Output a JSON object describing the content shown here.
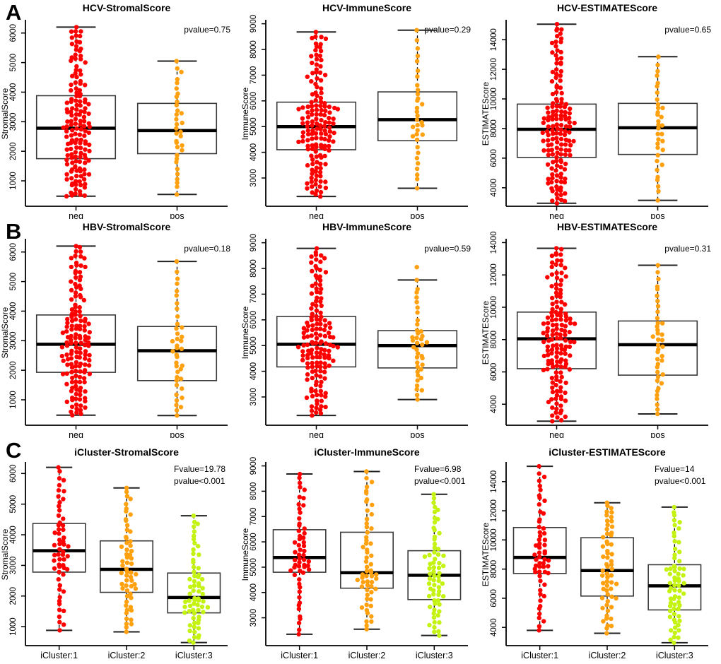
{
  "figure": {
    "letters": [
      "A",
      "B",
      "C"
    ],
    "background": "#ffffff",
    "axis_color": "#000000",
    "box_fill": "#ffffff",
    "box_stroke": "#3a3a3a"
  },
  "chart_data": [
    {
      "id": "hcv-stromalscore",
      "type": "boxplot",
      "title": "HCV-StromalScore",
      "annotation": [
        "pvalue=0.75"
      ],
      "ylabel": "StromalScore",
      "yticks": [
        1000,
        2000,
        3000,
        4000,
        5000,
        6000
      ],
      "ylim": [
        140,
        6400
      ],
      "categories": [
        "neg",
        "pos"
      ],
      "legend_position": "none",
      "grid": false,
      "groups": [
        {
          "label": "neg",
          "color": "#FF0000",
          "n": 150,
          "box": {
            "min": 480,
            "q1": 1750,
            "median": 2780,
            "q3": 3880,
            "max": 6200
          }
        },
        {
          "label": "pos",
          "color": "#FFA00E",
          "n": 34,
          "box": {
            "min": 540,
            "q1": 1920,
            "median": 2700,
            "q3": 3620,
            "max": 5050
          }
        }
      ]
    },
    {
      "id": "hcv-immunescore",
      "type": "boxplot",
      "title": "HCV-ImmuneScore",
      "annotation": [
        "pvalue=0.29"
      ],
      "ylabel": "ImmuneScore",
      "yticks": [
        3000,
        4000,
        5000,
        6000,
        7000,
        8000,
        9000
      ],
      "ylim": [
        1900,
        9100
      ],
      "categories": [
        "neg",
        "pos"
      ],
      "legend_position": "none",
      "grid": false,
      "groups": [
        {
          "label": "neg",
          "color": "#FF0000",
          "n": 150,
          "box": {
            "min": 2280,
            "q1": 4100,
            "median": 5000,
            "q3": 5950,
            "max": 8680
          }
        },
        {
          "label": "pos",
          "color": "#FFA00E",
          "n": 34,
          "box": {
            "min": 2600,
            "q1": 4450,
            "median": 5270,
            "q3": 6350,
            "max": 8750
          }
        }
      ]
    },
    {
      "id": "hcv-estimatescore",
      "type": "boxplot",
      "title": "HCV-ESTIMATEScore",
      "annotation": [
        "pvalue=0.65"
      ],
      "ylabel": "ESTIMATEScore",
      "yticks": [
        4000,
        6000,
        8000,
        10000,
        12000,
        14000
      ],
      "ylim": [
        2750,
        15250
      ],
      "categories": [
        "neg",
        "pos"
      ],
      "legend_position": "none",
      "grid": false,
      "groups": [
        {
          "label": "neg",
          "color": "#FF0000",
          "n": 150,
          "box": {
            "min": 2950,
            "q1": 6050,
            "median": 7950,
            "q3": 9650,
            "max": 15050
          }
        },
        {
          "label": "pos",
          "color": "#FFA00E",
          "n": 34,
          "box": {
            "min": 3150,
            "q1": 6250,
            "median": 8050,
            "q3": 9700,
            "max": 12850
          }
        }
      ]
    },
    {
      "id": "hbv-stromalscore",
      "type": "boxplot",
      "title": "HBV-StromalScore",
      "annotation": [
        "pvalue=0.18"
      ],
      "ylabel": "StromalScore",
      "yticks": [
        1000,
        2000,
        3000,
        4000,
        5000,
        6000
      ],
      "ylim": [
        140,
        6400
      ],
      "categories": [
        "neg",
        "pos"
      ],
      "legend_position": "none",
      "grid": false,
      "groups": [
        {
          "label": "neg",
          "color": "#FF0000",
          "n": 150,
          "box": {
            "min": 480,
            "q1": 1930,
            "median": 2880,
            "q3": 3870,
            "max": 6200
          }
        },
        {
          "label": "pos",
          "color": "#FFA00E",
          "n": 40,
          "box": {
            "min": 470,
            "q1": 1650,
            "median": 2660,
            "q3": 3480,
            "max": 5680
          }
        }
      ]
    },
    {
      "id": "hbv-immunescore",
      "type": "boxplot",
      "title": "HBV-ImmuneScore",
      "annotation": [
        "pvalue=0.59"
      ],
      "ylabel": "ImmuneScore",
      "yticks": [
        3000,
        4000,
        5000,
        6000,
        7000,
        8000,
        9000
      ],
      "ylim": [
        1900,
        9100
      ],
      "categories": [
        "neg",
        "pos"
      ],
      "legend_position": "none",
      "grid": false,
      "groups": [
        {
          "label": "neg",
          "color": "#FF0000",
          "n": 150,
          "box": {
            "min": 2280,
            "q1": 4170,
            "median": 5050,
            "q3": 6130,
            "max": 8780
          }
        },
        {
          "label": "pos",
          "color": "#FFA00E",
          "n": 39,
          "box": {
            "min": 2900,
            "q1": 4130,
            "median": 5000,
            "q3": 5580,
            "max": 7550
          },
          "outliers": [
            8050
          ]
        }
      ]
    },
    {
      "id": "hbv-estimatescore",
      "type": "boxplot",
      "title": "HBV-ESTIMATEScore",
      "annotation": [
        "pvalue=0.31"
      ],
      "ylabel": "ESTIMATEScore",
      "yticks": [
        4000,
        6000,
        8000,
        10000,
        12000,
        14000
      ],
      "ylim": [
        2700,
        14150
      ],
      "categories": [
        "neg",
        "pos"
      ],
      "legend_position": "none",
      "grid": false,
      "groups": [
        {
          "label": "neg",
          "color": "#FF0000",
          "n": 150,
          "box": {
            "min": 2950,
            "q1": 6200,
            "median": 8050,
            "q3": 9700,
            "max": 13650
          }
        },
        {
          "label": "pos",
          "color": "#FFA00E",
          "n": 40,
          "box": {
            "min": 3400,
            "q1": 5800,
            "median": 7680,
            "q3": 9150,
            "max": 12600
          }
        }
      ]
    },
    {
      "id": "icluster-stromalscore",
      "type": "boxplot",
      "title": "iCluster-StromalScore",
      "annotation": [
        "Fvalue=19.78",
        "pvalue<0.001"
      ],
      "ylabel": "StromalScore",
      "yticks": [
        1000,
        2000,
        3000,
        4000,
        5000,
        6000
      ],
      "ylim": [
        380,
        6330
      ],
      "categories": [
        "iCluster:1",
        "iCluster:2",
        "iCluster:3"
      ],
      "legend_position": "none",
      "grid": false,
      "groups": [
        {
          "label": "iCluster:1",
          "color": "#FF0000",
          "n": 58,
          "box": {
            "min": 880,
            "q1": 2780,
            "median": 3480,
            "q3": 4370,
            "max": 6200
          }
        },
        {
          "label": "iCluster:2",
          "color": "#FFA00E",
          "n": 60,
          "box": {
            "min": 830,
            "q1": 2120,
            "median": 2870,
            "q3": 3800,
            "max": 5530
          }
        },
        {
          "label": "iCluster:3",
          "color": "#C4F211",
          "n": 66,
          "box": {
            "min": 480,
            "q1": 1450,
            "median": 1950,
            "q3": 2750,
            "max": 4620
          }
        }
      ]
    },
    {
      "id": "icluster-immunescore",
      "type": "boxplot",
      "title": "iCluster-ImmuneScore",
      "annotation": [
        "Fvalue=6.98",
        "pvalue<0.001"
      ],
      "ylabel": "ImmuneScore",
      "yticks": [
        3000,
        4000,
        5000,
        6000,
        7000,
        8000,
        9000
      ],
      "ylim": [
        1900,
        9100
      ],
      "categories": [
        "iCluster:1",
        "iCluster:2",
        "iCluster:3"
      ],
      "legend_position": "none",
      "grid": false,
      "groups": [
        {
          "label": "iCluster:1",
          "color": "#FF0000",
          "n": 58,
          "box": {
            "min": 2350,
            "q1": 4800,
            "median": 5380,
            "q3": 6480,
            "max": 8680
          }
        },
        {
          "label": "iCluster:2",
          "color": "#FFA00E",
          "n": 60,
          "box": {
            "min": 2550,
            "q1": 4170,
            "median": 4780,
            "q3": 6380,
            "max": 8780
          }
        },
        {
          "label": "iCluster:3",
          "color": "#C4F211",
          "n": 66,
          "box": {
            "min": 2300,
            "q1": 3720,
            "median": 4680,
            "q3": 5650,
            "max": 7880
          }
        }
      ]
    },
    {
      "id": "icluster-estimatescore",
      "type": "boxplot",
      "title": "iCluster-ESTIMATEScore",
      "annotation": [
        "Fvalue=14",
        "pvalue<0.001"
      ],
      "ylabel": "ESTIMATEScore",
      "yticks": [
        4000,
        6000,
        8000,
        10000,
        12000,
        14000
      ],
      "ylim": [
        2750,
        15250
      ],
      "categories": [
        "iCluster:1",
        "iCluster:2",
        "iCluster:3"
      ],
      "legend_position": "none",
      "grid": false,
      "groups": [
        {
          "label": "iCluster:1",
          "color": "#FF0000",
          "n": 58,
          "box": {
            "min": 3800,
            "q1": 7700,
            "median": 8800,
            "q3": 10850,
            "max": 15050
          }
        },
        {
          "label": "iCluster:2",
          "color": "#FFA00E",
          "n": 60,
          "box": {
            "min": 3600,
            "q1": 6150,
            "median": 7900,
            "q3": 10150,
            "max": 12550
          }
        },
        {
          "label": "iCluster:3",
          "color": "#C4F211",
          "n": 66,
          "box": {
            "min": 2950,
            "q1": 5200,
            "median": 6850,
            "q3": 8300,
            "max": 12250
          }
        }
      ]
    }
  ]
}
